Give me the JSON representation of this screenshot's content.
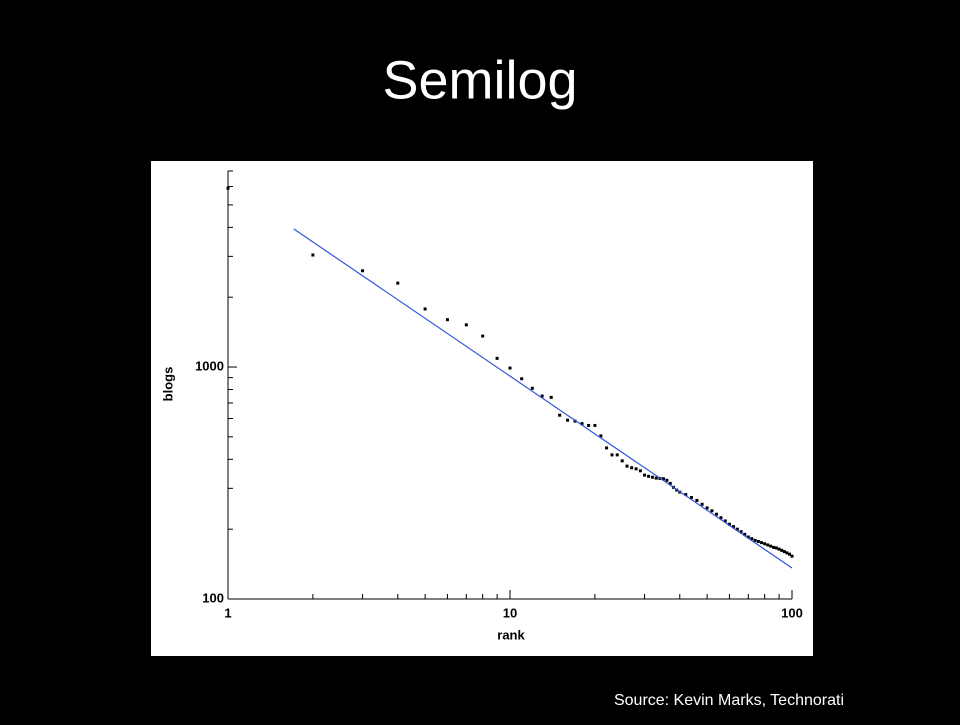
{
  "chart_data": {
    "type": "scatter",
    "title": "Semilog",
    "source": "Source: Kevin Marks, Technorati",
    "x_label": "rank",
    "y_label": "blogs",
    "xscale": "log",
    "yscale": "log",
    "xlim": [
      1,
      100
    ],
    "ylim": [
      100,
      7000
    ],
    "xticks": [
      1,
      10,
      100
    ],
    "yticks": [
      100,
      1000
    ],
    "xminor_ticks": [
      2,
      3,
      4,
      5,
      6,
      7,
      8,
      9,
      20,
      30,
      40,
      50,
      60,
      70,
      80,
      90
    ],
    "yminor_ticks": [
      200,
      300,
      400,
      500,
      600,
      700,
      800,
      900,
      2000,
      3000,
      4000,
      5000,
      6000,
      7000
    ],
    "grid": false,
    "series": [
      {
        "color": "#000000",
        "x": [
          1,
          2,
          3,
          4,
          5,
          6,
          7,
          8,
          9,
          10,
          11,
          12,
          13,
          14,
          15,
          16,
          17,
          18,
          19,
          20,
          21,
          22,
          23,
          24,
          25,
          26,
          27,
          28,
          29,
          30,
          31,
          32,
          33,
          34,
          35,
          36,
          37,
          38,
          39,
          40,
          42,
          44,
          46,
          48,
          50,
          52,
          54,
          56,
          58,
          60,
          62,
          64,
          66,
          68,
          70,
          72,
          74,
          76,
          78,
          80,
          82,
          84,
          86,
          88,
          90,
          92,
          94,
          96,
          98,
          100
        ],
        "values": [
          5900,
          3040,
          2600,
          2300,
          1780,
          1600,
          1520,
          1360,
          1090,
          990,
          890,
          810,
          750,
          740,
          620,
          590,
          585,
          570,
          560,
          560,
          505,
          448,
          418,
          418,
          394,
          374,
          368,
          364,
          357,
          342,
          338,
          335,
          332,
          331,
          330,
          325,
          315,
          303,
          295,
          289,
          282,
          274,
          266,
          256,
          247,
          240,
          232,
          224,
          217,
          210,
          205,
          200,
          195,
          190,
          185,
          182,
          179,
          177,
          175,
          173,
          171,
          169,
          167,
          166,
          164,
          162,
          160,
          158,
          156,
          153
        ]
      },
      {
        "type": "line",
        "color": "#3355dd",
        "x": [
          1.71,
          100
        ],
        "values": [
          3940,
          136
        ]
      }
    ]
  }
}
